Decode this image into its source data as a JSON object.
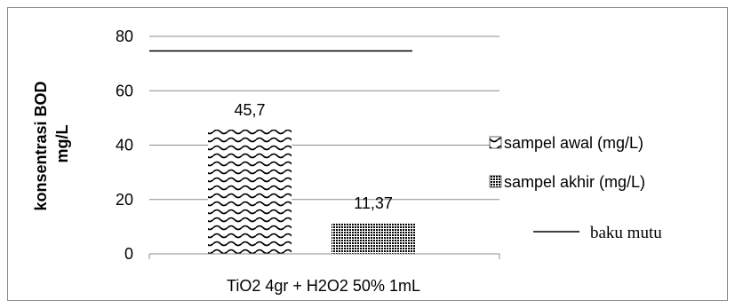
{
  "chart_data": {
    "type": "bar",
    "categories": [
      "TiO2 4gr + H2O2 50% 1mL"
    ],
    "series": [
      {
        "name": "sampel awal (mg/L)",
        "values": [
          45.7
        ],
        "labels": [
          "45,7"
        ],
        "pattern": "wave"
      },
      {
        "name": "sampel akhir (mg/L)",
        "values": [
          11.37
        ],
        "labels": [
          "11,37"
        ],
        "pattern": "dots"
      }
    ],
    "reference_line": {
      "name": "baku mutu",
      "value": 75
    },
    "title": "",
    "xlabel": "",
    "ylabel_lines": [
      "konsentrasi BOD",
      "mg/L"
    ],
    "ylim": [
      0,
      80
    ],
    "yticks": [
      0,
      20,
      40,
      60,
      80
    ],
    "grid": true,
    "legend_position": "right"
  }
}
